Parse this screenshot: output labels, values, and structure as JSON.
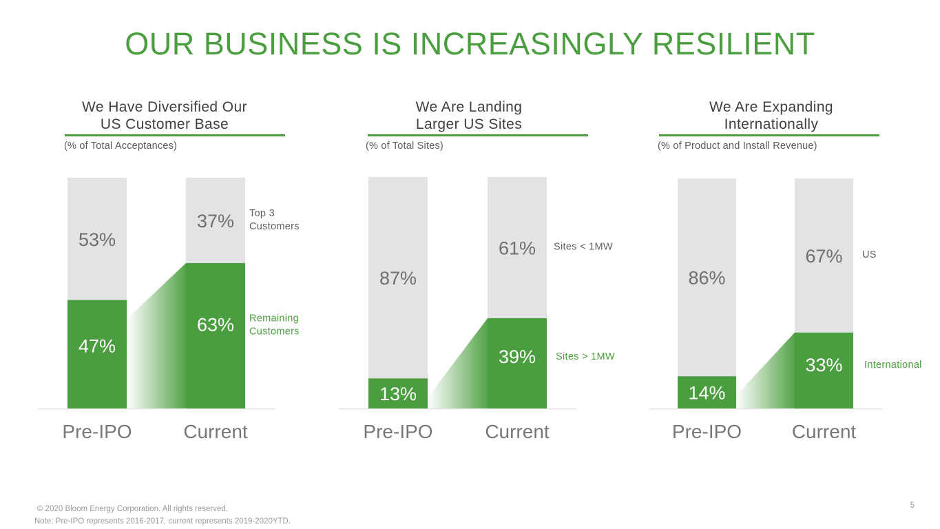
{
  "title": "OUR BUSINESS IS INCREASINGLY RESILIENT",
  "colors": {
    "accent": "#4b9e3f",
    "gray_bar": "#e2e3e5",
    "gray_text": "#6f6f6f"
  },
  "panels": [
    {
      "heading_line1": "We Have Diversified Our",
      "heading_line2": "US Customer Base",
      "subnote": "(% of Total Acceptances)"
    },
    {
      "heading_line1": "We Are Landing",
      "heading_line2": "Larger US Sites",
      "subnote": "(% of Total Sites)"
    },
    {
      "heading_line1": "We Are Expanding",
      "heading_line2": "Internationally",
      "subnote": "(% of Product and Install Revenue)"
    }
  ],
  "chart_data": [
    {
      "type": "bar",
      "stacked": true,
      "categories": [
        "Pre-IPO",
        "Current"
      ],
      "series": [
        {
          "name": "Remaining Customers",
          "values": [
            47,
            63
          ],
          "color": "#4b9e3f",
          "label_lines": [
            "Remaining",
            "Customers"
          ]
        },
        {
          "name": "Top 3 Customers",
          "values": [
            53,
            37
          ],
          "color": "#e2e3e5",
          "label_lines": [
            "Top 3",
            "Customers"
          ]
        }
      ],
      "value_labels": [
        [
          "47%",
          "63%"
        ],
        [
          "53%",
          "37%"
        ]
      ],
      "ylim": [
        0,
        100
      ]
    },
    {
      "type": "bar",
      "stacked": true,
      "categories": [
        "Pre-IPO",
        "Current"
      ],
      "series": [
        {
          "name": "Sites > 1MW",
          "values": [
            13,
            39
          ],
          "color": "#4b9e3f",
          "label_lines": [
            "Sites > 1MW"
          ]
        },
        {
          "name": "Sites < 1MW",
          "values": [
            87,
            61
          ],
          "color": "#e2e3e5",
          "label_lines": [
            "Sites < 1MW"
          ]
        }
      ],
      "value_labels": [
        [
          "13%",
          "39%"
        ],
        [
          "87%",
          "61%"
        ]
      ],
      "ylim": [
        0,
        100
      ]
    },
    {
      "type": "bar",
      "stacked": true,
      "categories": [
        "Pre-IPO",
        "Current"
      ],
      "series": [
        {
          "name": "International",
          "values": [
            14,
            33
          ],
          "color": "#4b9e3f",
          "label_lines": [
            "International"
          ]
        },
        {
          "name": "US",
          "values": [
            86,
            67
          ],
          "color": "#e2e3e5",
          "label_lines": [
            "US"
          ]
        }
      ],
      "value_labels": [
        [
          "14%",
          "33%"
        ],
        [
          "86%",
          "67%"
        ]
      ],
      "ylim": [
        0,
        100
      ]
    }
  ],
  "footer": {
    "copyright": "© 2020 Bloom Energy Corporation.  All rights reserved.",
    "note": "Note:  Pre-IPO represents 2016-2017, current represents 2019-2020YTD.",
    "page_number": "5"
  }
}
